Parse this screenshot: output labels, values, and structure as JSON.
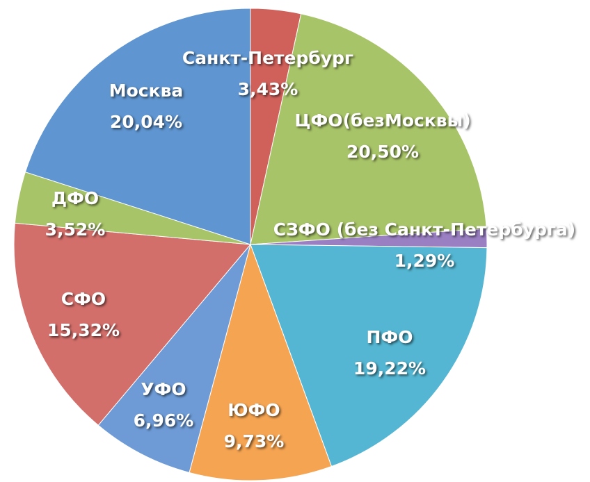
{
  "chart_data": {
    "type": "pie",
    "categories": [
      "Санкт-Петербург",
      "ЦФО(безМосквы)",
      "СЗФО (без Санкт-Петербурга)",
      "ПФО",
      "ЮФО",
      "УФО",
      "СФО",
      "ДФО",
      "Москва"
    ],
    "values": [
      3.43,
      20.5,
      1.29,
      19.22,
      9.73,
      6.96,
      15.32,
      3.52,
      20.04
    ],
    "value_labels": [
      "3,43%",
      "20,50%",
      "1,29%",
      "19,22%",
      "9,73%",
      "6,96%",
      "15,32%",
      "3,52%",
      "20,04%"
    ],
    "colors": [
      "#d0605a",
      "#a8c468",
      "#9a7fc2",
      "#54b6d2",
      "#f5a452",
      "#6e9bd6",
      "#d36f6b",
      "#a8c468",
      "#5f95d0"
    ]
  }
}
